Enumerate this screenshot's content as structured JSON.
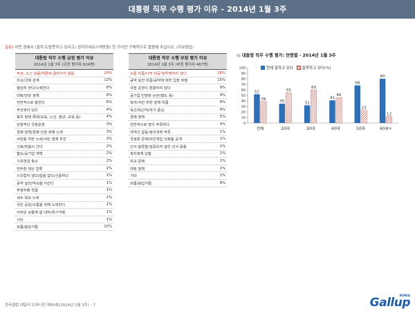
{
  "header": {
    "title": "대통령 직무 수행 평가 이유 - 2014년 1월 3주"
  },
  "question": {
    "tag": "질문)",
    "text": " 어떤 점에서 (잘하고/잘못하고 있다고) 생각하세요?(개방형) 한 가지만 구체적으로 말씀해 주십시오. (자유응답)"
  },
  "positive_table": {
    "title": "대통령 직무 수행 긍정 평가 이유",
    "subtitle": "2014년 1월 3주 (긍정 평가자 624명)",
    "rows": [
      {
        "label": "주관, 소신 있음/여론에 끌려가지 않음",
        "value": "20%",
        "highlight": true
      },
      {
        "label": "외교/국제 관계",
        "value": "12%",
        "highlight": false
      },
      {
        "label": "열심히 한다/노력한다",
        "value": "8%",
        "highlight": false
      },
      {
        "label": "대북/안보 정책",
        "value": "8%",
        "highlight": false
      },
      {
        "label": "전반적으로 잘한다",
        "value": "6%",
        "highlight": false
      },
      {
        "label": "추진력이 있다",
        "value": "4%",
        "highlight": false
      },
      {
        "label": "복지 정책 확대(보육, 노인, 청년, 교육 등)",
        "value": "4%",
        "highlight": false
      },
      {
        "label": "안정적인 국정운영",
        "value": "3%",
        "highlight": false
      },
      {
        "label": "경제 정책/경제 안정 위해 노력",
        "value": "3%",
        "highlight": false
      },
      {
        "label": "서민을 위한 노력/서민 정책 추진",
        "value": "3%",
        "highlight": false
      },
      {
        "label": "신뢰/믿음이 간다",
        "value": "2%",
        "highlight": false
      },
      {
        "label": "철도/공기업 개혁",
        "value": "2%",
        "highlight": false
      },
      {
        "label": "기초연금 축소",
        "value": "2%",
        "highlight": false
      },
      {
        "label": "전두환 재산 압류",
        "value": "2%",
        "highlight": false
      },
      {
        "label": "시끄럽지 않다/잡음 없다/신중하다",
        "value": "1%",
        "highlight": false
      },
      {
        "label": "공약 실천/약속을 지킨다",
        "value": "1%",
        "highlight": false
      },
      {
        "label": "부정부패 척결",
        "value": "1%",
        "highlight": false
      },
      {
        "label": "세수 확보 노력",
        "value": "1%",
        "highlight": false
      },
      {
        "label": "국민 공감/소통을 위해 노력한다",
        "value": "1%",
        "highlight": false
      },
      {
        "label": "어려운 상황에 잘 대처/위기극복",
        "value": "1%",
        "highlight": false
      },
      {
        "label": "기타",
        "value": "1%",
        "highlight": false
      },
      {
        "label": "모름/응답거절",
        "value": "15%",
        "highlight": false
      }
    ]
  },
  "negative_table": {
    "title": "대통령 직무 수행 부정 평가 이유",
    "subtitle": "2014년 1월 3주 (부정 평가자 467명)",
    "rows": [
      {
        "label": "소통 미흡/너무 비공개/투명하지 않다",
        "value": "28%",
        "highlight": true
      },
      {
        "label": "공약 실천 미흡/공약에 대한 입장 바뀜",
        "value": "15%",
        "highlight": false
      },
      {
        "label": "국정 운영이 원활하지 않다",
        "value": "9%",
        "highlight": false
      },
      {
        "label": "공기업 민영화 논란(철도 등)",
        "value": "9%",
        "highlight": false
      },
      {
        "label": "복지/서민 위한 정책 미흡",
        "value": "8%",
        "highlight": false
      },
      {
        "label": "독선/독단적/자기 중심",
        "value": "8%",
        "highlight": false
      },
      {
        "label": "경제 정책",
        "value": "5%",
        "highlight": false
      },
      {
        "label": "전반적으로 많이 부족하다",
        "value": "4%",
        "highlight": false
      },
      {
        "label": "여야간 갈등/정치개혁 부족",
        "value": "1%",
        "highlight": false
      },
      {
        "label": "국정원 문제/대선개입 의혹을 공개",
        "value": "1%",
        "highlight": false
      },
      {
        "label": "인사 잘못함/검증되지 않은 인사 등용",
        "value": "1%",
        "highlight": false
      },
      {
        "label": "복지정책 남발",
        "value": "1%",
        "highlight": false
      },
      {
        "label": "외교 문제",
        "value": "1%",
        "highlight": false
      },
      {
        "label": "대북 정책",
        "value": "1%",
        "highlight": false
      },
      {
        "label": "기타",
        "value": "2%",
        "highlight": false
      },
      {
        "label": "모름/응답거절",
        "value": "8%",
        "highlight": false
      }
    ]
  },
  "chart_title": {
    "bullet": "◎",
    "text": " 대통령 직무 수행 평가: 연령별 - 2014년 1월 3주"
  },
  "chart_data": {
    "type": "bar",
    "categories": [
      "전체",
      "20대",
      "30대",
      "40대",
      "50대",
      "60세+"
    ],
    "series": [
      {
        "name": "현재 잘하고 있다",
        "values": [
          52,
          35,
          32,
          41,
          68,
          80
        ],
        "color": "#2f6fb5"
      },
      {
        "name": "잘못하고 있다(%)",
        "values": [
          39,
          55,
          60,
          46,
          23,
          12
        ],
        "color": "#c0392b"
      }
    ],
    "ylim": [
      0,
      100
    ],
    "yticks": [
      "0",
      "10",
      "20",
      "30",
      "40",
      "50",
      "60",
      "70",
      "80",
      "90",
      "100"
    ],
    "grid": false,
    "legend": "top"
  },
  "footer": {
    "note": "한국갤럽 데일리 오피니언 제99호(2014년 1월 3주) - 7"
  },
  "logo": {
    "text": "Gallup",
    "korea": "KOREA",
    "color": "#1e5ca8"
  }
}
